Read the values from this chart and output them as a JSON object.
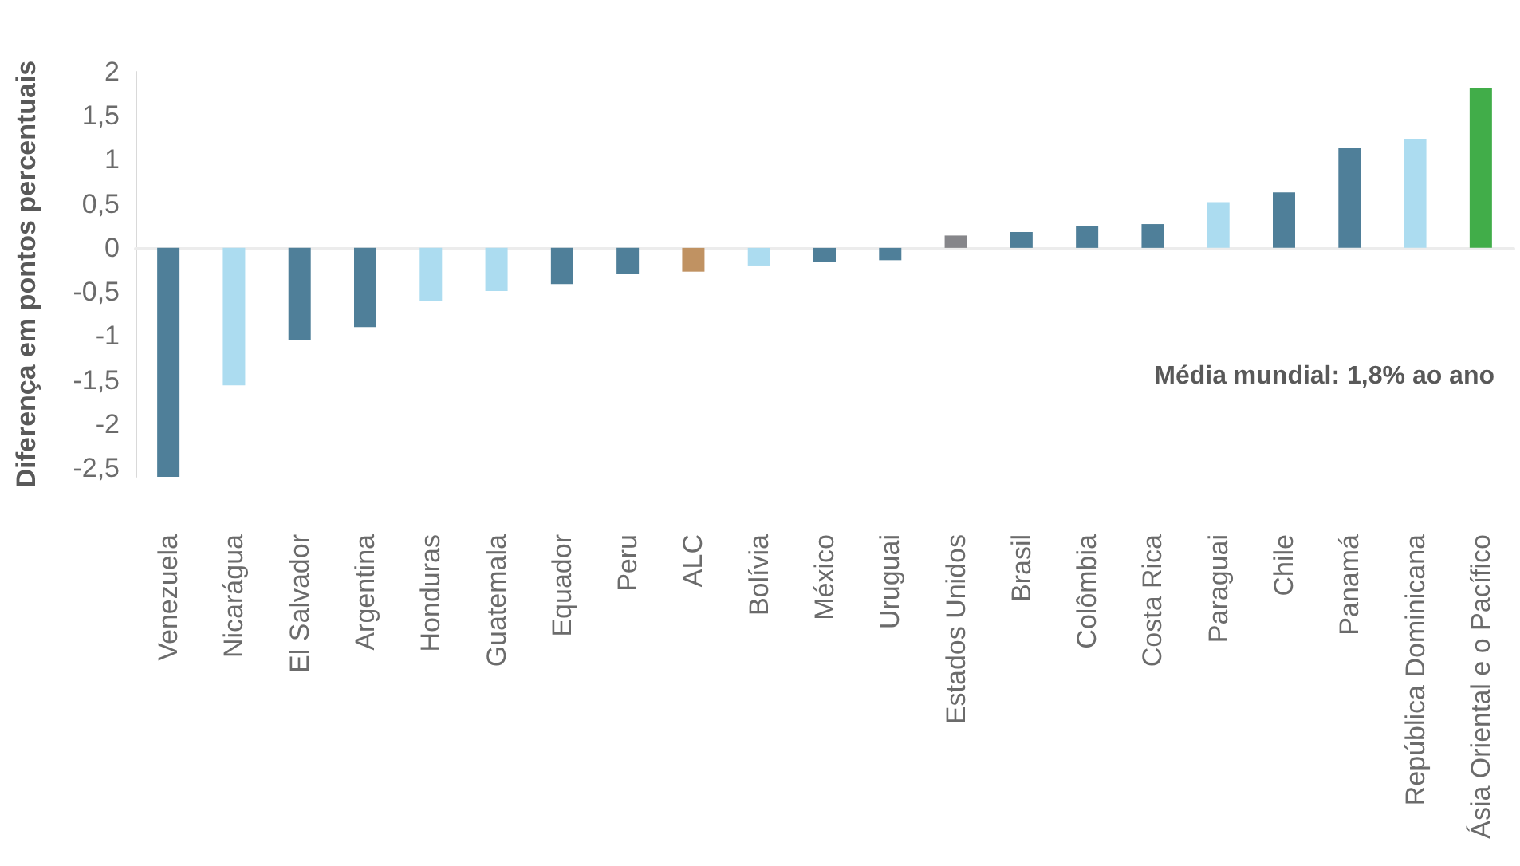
{
  "chart_data": {
    "type": "bar",
    "ylabel": "Diferença em pontos percentuais",
    "categories": [
      "Venezuela",
      "Nicarágua",
      "El Salvador",
      "Argentina",
      "Honduras",
      "Guatemala",
      "Equador",
      "Peru",
      "ALC",
      "Bolívia",
      "México",
      "Uruguai",
      "Estados Unidos",
      "Brasil",
      "Colômbia",
      "Costa Rica",
      "Paraguai",
      "Chile",
      "Panamá",
      "República Dominicana",
      "Ásia Oriental e o Pacífico"
    ],
    "values": [
      -2.6,
      -1.56,
      -1.05,
      -0.9,
      -0.6,
      -0.49,
      -0.41,
      -0.29,
      -0.27,
      -0.2,
      -0.16,
      -0.14,
      0.14,
      0.18,
      0.25,
      0.27,
      0.52,
      0.63,
      1.13,
      1.24,
      1.82
    ],
    "colors": [
      "#4f7f99",
      "#acdcf0",
      "#4f7f99",
      "#4f7f99",
      "#acdcf0",
      "#acdcf0",
      "#4f7f99",
      "#4f7f99",
      "#c09262",
      "#acdcf0",
      "#4f7f99",
      "#4f7f99",
      "#86868a",
      "#4f7f99",
      "#4f7f99",
      "#4f7f99",
      "#acdcf0",
      "#4f7f99",
      "#4f7f99",
      "#acdcf0",
      "#41ad49"
    ],
    "ylim": [
      -2.6,
      2
    ],
    "yticks": [
      {
        "value": -2.5,
        "label": "-2,5"
      },
      -2,
      {
        "value": -1.5,
        "label": "-1,5"
      },
      -1,
      {
        "value": -0.5,
        "label": "-0,5"
      },
      0,
      {
        "value": 0.5,
        "label": "0,5"
      },
      1,
      {
        "value": 1.5,
        "label": "1,5"
      },
      2
    ],
    "annotations": [
      "Média mundial: 1,8% ao ano"
    ]
  }
}
